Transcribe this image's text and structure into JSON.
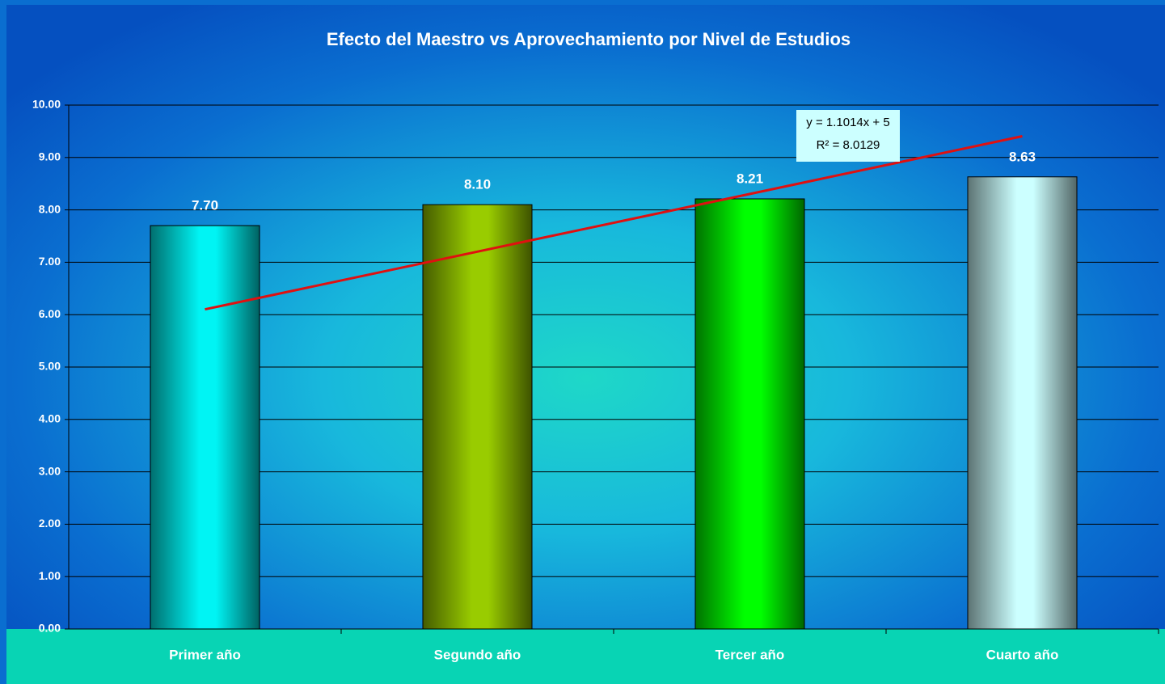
{
  "chart_data": {
    "type": "bar",
    "title": "Efecto del Maestro vs Aprovechamiento por Nivel de Estudios",
    "categories": [
      "Primer año",
      "Segundo año",
      "Tercer año",
      "Cuarto año"
    ],
    "values": [
      7.7,
      8.1,
      8.21,
      8.63
    ],
    "value_labels": [
      "7.70",
      "8.10",
      "8.21",
      "8.63"
    ],
    "colors": [
      "#00f4f4",
      "#99cc00",
      "#00ff00",
      "#ccffff"
    ],
    "ylim": [
      0,
      10
    ],
    "yticks": [
      {
        "value": 0,
        "label": "0.00"
      },
      {
        "value": 1,
        "label": "1.00"
      },
      {
        "value": 2,
        "label": "2.00"
      },
      {
        "value": 3,
        "label": "3.00"
      },
      {
        "value": 4,
        "label": "4.00"
      },
      {
        "value": 5,
        "label": "5.00"
      },
      {
        "value": 6,
        "label": "6.00"
      },
      {
        "value": 7,
        "label": "7.00"
      },
      {
        "value": 8,
        "label": "8.00"
      },
      {
        "value": 9,
        "label": "9.00"
      },
      {
        "value": 10,
        "label": "10.00"
      }
    ],
    "grid": true,
    "trendline": {
      "slope": 1.1014,
      "intercept": 5,
      "equation": "y = 1.1014x + 5",
      "r2": 8.0129,
      "r2_label": "R² = 8.0129",
      "color": "#e01010"
    }
  }
}
